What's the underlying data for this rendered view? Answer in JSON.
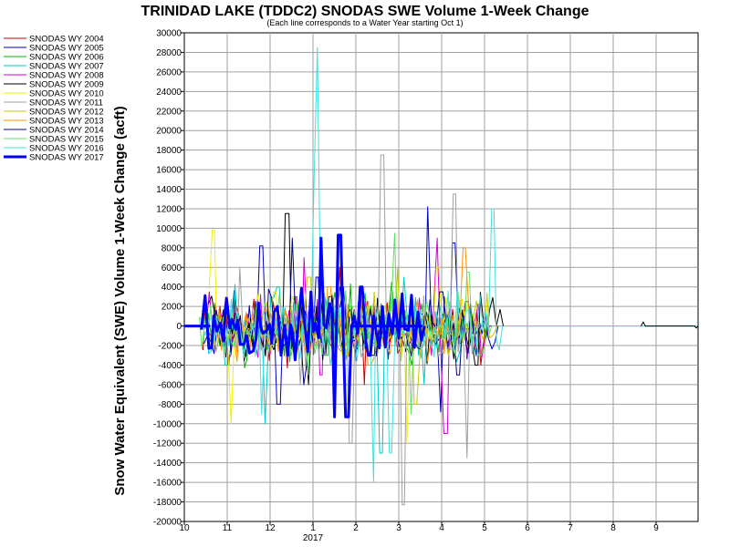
{
  "chart_data": {
    "type": "line",
    "title": "TRINIDAD LAKE (TDDC2) SNODAS SWE Volume 1-Week Change",
    "subtitle": "(Each line corresponds to a Water Year starting Oct 1)",
    "ylabel": "Snow Water Equivalent (SWE) Volume 1-Week Change (acft)",
    "xlabel": "",
    "ylim": [
      -20000,
      30000
    ],
    "yticks": [
      30000,
      28000,
      26000,
      24000,
      22000,
      20000,
      18000,
      16000,
      14000,
      12000,
      10000,
      8000,
      6000,
      4000,
      2000,
      0,
      -2000,
      -4000,
      -6000,
      -8000,
      -10000,
      -12000,
      -14000,
      -16000,
      -18000,
      -20000
    ],
    "xlim": [
      10,
      10.95
    ],
    "xticks": [
      {
        "label": "10",
        "month": 10
      },
      {
        "label": "11",
        "month": 11
      },
      {
        "label": "12",
        "month": 12
      },
      {
        "label": "1",
        "month": 13
      },
      {
        "label": "2",
        "month": 14
      },
      {
        "label": "3",
        "month": 15
      },
      {
        "label": "4",
        "month": 16
      },
      {
        "label": "5",
        "month": 17
      },
      {
        "label": "6",
        "month": 18
      },
      {
        "label": "7",
        "month": 19
      },
      {
        "label": "8",
        "month": 20
      },
      {
        "label": "9",
        "month": 21
      }
    ],
    "x_sub_label": "2017",
    "grid": true,
    "legend_position": "left",
    "series": [
      {
        "name": "SNODAS WY 2004",
        "color": "#c00000",
        "width": 1,
        "peaks": [
          [
            13.6,
            6000
          ],
          [
            14.2,
            -6000
          ],
          [
            16.6,
            2500
          ],
          [
            16.9,
            -4000
          ],
          [
            17.2,
            -7000
          ]
        ]
      },
      {
        "name": "SNODAS WY 2005",
        "color": "#0000c0",
        "width": 1,
        "peaks": [
          [
            11.8,
            8200
          ],
          [
            12.2,
            -8000
          ],
          [
            13.1,
            5000
          ],
          [
            15.7,
            12200
          ],
          [
            16.0,
            -8800
          ],
          [
            16.3,
            8500
          ]
        ]
      },
      {
        "name": "SNODAS WY 2006",
        "color": "#00b000",
        "width": 1,
        "peaks": [
          [
            12.6,
            3000
          ],
          [
            13.3,
            -3000
          ],
          [
            14.8,
            4500
          ],
          [
            15.3,
            -4000
          ]
        ]
      },
      {
        "name": "SNODAS WY 2007",
        "color": "#00c8c8",
        "width": 1,
        "peaks": [
          [
            11.0,
            -4000
          ],
          [
            11.9,
            -10000
          ],
          [
            12.2,
            4000
          ],
          [
            14.6,
            -13000
          ],
          [
            15.1,
            5000
          ],
          [
            15.6,
            -6000
          ]
        ]
      },
      {
        "name": "SNODAS WY 2008",
        "color": "#d000d0",
        "width": 1,
        "peaks": [
          [
            10.6,
            3500
          ],
          [
            12.8,
            7000
          ],
          [
            13.2,
            -5000
          ],
          [
            15.9,
            9000
          ],
          [
            16.1,
            -11000
          ]
        ]
      },
      {
        "name": "SNODAS WY 2009",
        "color": "#000000",
        "width": 1,
        "peaks": [
          [
            12.4,
            11500
          ],
          [
            12.9,
            -6000
          ],
          [
            13.4,
            3000
          ],
          [
            14.4,
            -3000
          ],
          [
            16.8,
            -4000
          ]
        ]
      },
      {
        "name": "SNODAS WY 2010",
        "color": "#f0f000",
        "width": 1,
        "peaks": [
          [
            10.7,
            9800
          ],
          [
            11.1,
            -10000
          ],
          [
            12.1,
            3500
          ],
          [
            15.2,
            -12000
          ],
          [
            15.9,
            6000
          ]
        ]
      },
      {
        "name": "SNODAS WY 2011",
        "color": "#a0a0a0",
        "width": 1,
        "peaks": [
          [
            11.3,
            6000
          ],
          [
            12.7,
            -6000
          ],
          [
            13.9,
            -12000
          ],
          [
            14.6,
            17500
          ],
          [
            15.1,
            -18300
          ],
          [
            16.3,
            13500
          ],
          [
            16.6,
            -13500
          ]
        ]
      },
      {
        "name": "SNODAS WY 2012",
        "color": "#c8c800",
        "width": 1,
        "peaks": [
          [
            12.9,
            5000
          ],
          [
            13.5,
            -4000
          ],
          [
            15.0,
            6000
          ],
          [
            15.4,
            -8000
          ]
        ]
      },
      {
        "name": "SNODAS WY 2013",
        "color": "#ff9000",
        "width": 1,
        "peaks": [
          [
            13.4,
            4000
          ],
          [
            14.3,
            -4000
          ],
          [
            16.5,
            8000
          ],
          [
            16.9,
            -8000
          ]
        ]
      },
      {
        "name": "SNODAS WY 2014",
        "color": "#000080",
        "width": 1,
        "peaks": [
          [
            12.5,
            9000
          ],
          [
            12.8,
            -6000
          ],
          [
            13.7,
            4000
          ],
          [
            16.0,
            3500
          ],
          [
            16.4,
            -5000
          ]
        ]
      },
      {
        "name": "SNODAS WY 2015",
        "color": "#60e060",
        "width": 1,
        "peaks": [
          [
            12.9,
            -5000
          ],
          [
            14.9,
            9500
          ],
          [
            15.3,
            -9000
          ],
          [
            16.6,
            5500
          ],
          [
            16.9,
            -3000
          ]
        ]
      },
      {
        "name": "SNODAS WY 2016",
        "color": "#40e0e0",
        "width": 1,
        "peaks": [
          [
            11.8,
            -9000
          ],
          [
            13.0,
            15000
          ],
          [
            13.1,
            28500
          ],
          [
            13.4,
            -4000
          ],
          [
            14.4,
            -16000
          ],
          [
            14.8,
            -13000
          ],
          [
            17.2,
            12000
          ],
          [
            17.5,
            -11500
          ]
        ]
      },
      {
        "name": "SNODAS WY 2017",
        "color": "#0000ff",
        "width": 3,
        "peaks": [
          [
            12.2,
            2000
          ],
          [
            12.4,
            -3000
          ],
          [
            13.2,
            9000
          ],
          [
            13.5,
            -9300
          ],
          [
            13.6,
            9300
          ],
          [
            13.8,
            -9300
          ],
          [
            14.1,
            4000
          ],
          [
            14.3,
            -3000
          ],
          [
            14.6,
            2000
          ]
        ]
      }
    ]
  }
}
